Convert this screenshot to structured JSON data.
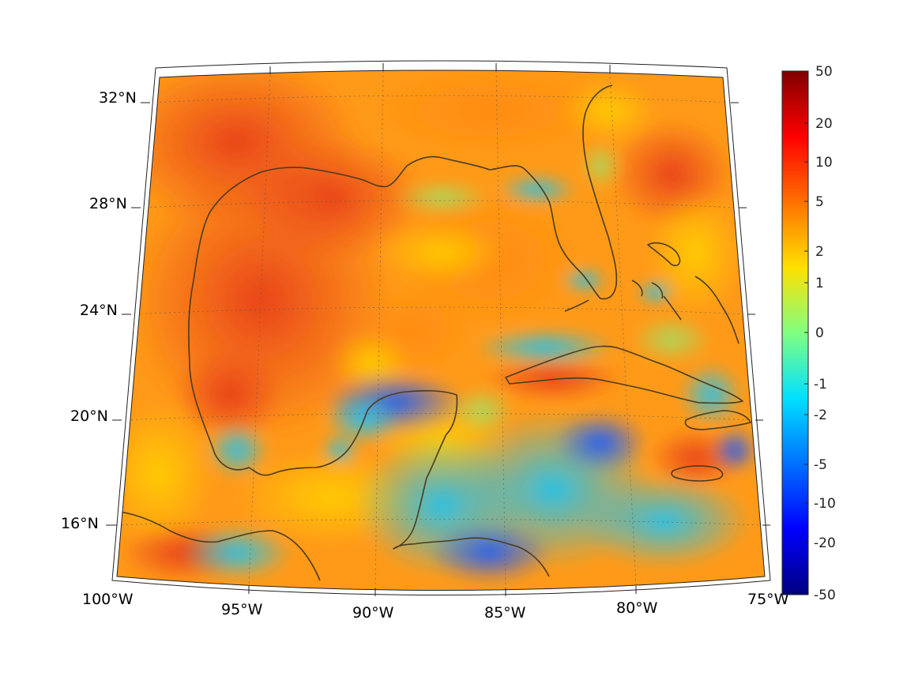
{
  "map": {
    "region": "Gulf of Mexico and Caribbean",
    "lon_range": [
      -100,
      -75
    ],
    "lat_range": [
      14,
      32
    ],
    "longitude_labels": [
      "100°W",
      "95°W",
      "90°W",
      "85°W",
      "80°W",
      "75°W"
    ],
    "latitude_labels": [
      "16°N",
      "20°N",
      "24°N",
      "28°N",
      "32°N"
    ],
    "coastline_color": "#4a3b1e",
    "gridline_style": "dotted"
  },
  "colorbar": {
    "tick_labels": [
      "50",
      "20",
      "10",
      "5",
      "2",
      "1",
      "0",
      "-1",
      "-2",
      "-5",
      "-10",
      "-20",
      "-50"
    ],
    "colormap": "jet",
    "colors": [
      "#000080",
      "#0000ff",
      "#0080ff",
      "#00ffff",
      "#80ff80",
      "#ffff00",
      "#ff8000",
      "#ff0000",
      "#800000"
    ]
  },
  "field_description_colors": {
    "warm_high": "#e8401a",
    "mid_orange": "#ff9a1a",
    "yellow": "#ffd400",
    "cyan_low": "#24c8f0",
    "blue_low": "#1e64ff"
  }
}
